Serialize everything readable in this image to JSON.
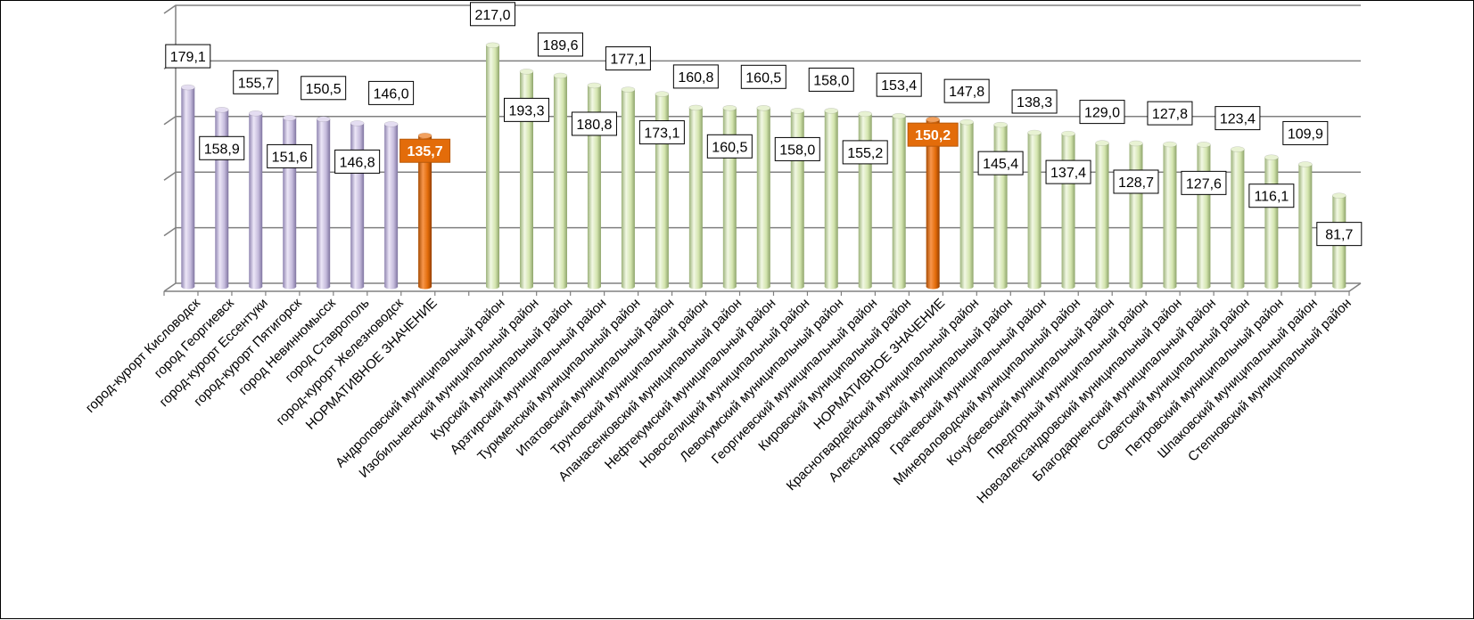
{
  "chart_data": {
    "type": "bar",
    "style": "3d-cylinder",
    "grid": true,
    "ylim": [
      0,
      250
    ],
    "colors": {
      "city": "#cdc3e3",
      "district": "#d8e8b4",
      "norm": "#e36c0a",
      "grid": "#808080"
    },
    "categories": [
      "город-курорт Кисловодск",
      "город Георгиевск",
      "город-курорт Ессентуки",
      "город-курорт Пятигорск",
      "город Невинномысск",
      "город Ставрополь",
      "город-курорт Железноводск",
      "НОРМАТИВНОЕ ЗНАЧЕНИЕ",
      "",
      "Андроповский муниципальный район",
      "Изобильненский муниципальный район",
      "Курский муниципальный район",
      "Арзгирский муниципальный район",
      "Туркменский муниципальный район",
      "Ипатовский муниципальный район",
      "Труновский муниципальный район",
      "Апанасенковский муниципальный район",
      "Нефтекумский муниципальный район",
      "Новоселицкий муниципальный район",
      "Левокумский муниципальный район",
      "Георгиевский муниципальный район",
      "Кировский муниципальный район",
      "НОРМАТИВНОЕ ЗНАЧЕНИЕ",
      "Красногвардейский муниципальный район",
      "Александровский муниципальный район",
      "Грачевский муниципальный район",
      "Минераловодский муниципальный район",
      "Кочубеевский муниципальный район",
      "Предгорный муниципальный район",
      "Новоалександровский муниципальный район",
      "Благодарненский муниципальный район",
      "Советский муниципальный район",
      "Петровский муниципальный район",
      "Шпаковский муниципальный район",
      "Степновский муниципальный район"
    ],
    "values": [
      179.1,
      158.9,
      155.7,
      151.6,
      150.5,
      146.8,
      146.0,
      135.7,
      null,
      217.0,
      193.3,
      189.6,
      180.8,
      177.1,
      173.1,
      160.8,
      160.5,
      160.5,
      158.0,
      158.0,
      155.2,
      153.4,
      150.2,
      147.8,
      145.4,
      138.3,
      137.4,
      129.0,
      128.7,
      127.8,
      127.6,
      123.4,
      116.1,
      109.9,
      81.7
    ],
    "value_labels": [
      "179,1",
      "158,9",
      "155,7",
      "151,6",
      "150,5",
      "146,8",
      "146,0",
      "135,7",
      "",
      "217,0",
      "193,3",
      "189,6",
      "180,8",
      "177,1",
      "173,1",
      "160,8",
      "160,5",
      "160,5",
      "158,0",
      "158,0",
      "155,2",
      "153,4",
      "150,2",
      "147,8",
      "145,4",
      "138,3",
      "137,4",
      "129,0",
      "128,7",
      "127,8",
      "127,6",
      "123,4",
      "116,1",
      "109,9",
      "81,7"
    ],
    "groups": [
      "city",
      "city",
      "city",
      "city",
      "city",
      "city",
      "city",
      "norm",
      "gap",
      "district",
      "district",
      "district",
      "district",
      "district",
      "district",
      "district",
      "district",
      "district",
      "district",
      "district",
      "district",
      "district",
      "norm",
      "district",
      "district",
      "district",
      "district",
      "district",
      "district",
      "district",
      "district",
      "district",
      "district",
      "district",
      "district"
    ]
  }
}
